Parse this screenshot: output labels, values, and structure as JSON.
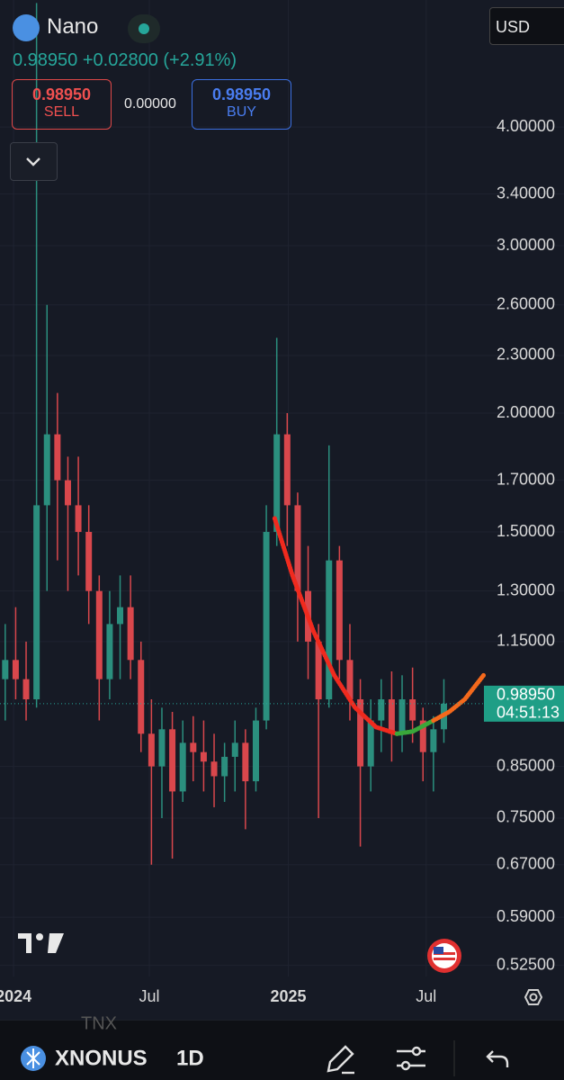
{
  "header": {
    "symbol_name": "Nano",
    "price_line": "0.98950 +0.02800 (+2.91%)",
    "currency": "USD"
  },
  "trade": {
    "sell_price": "0.98950",
    "sell_label": "SELL",
    "spread": "0.00000",
    "buy_price": "0.98950",
    "buy_label": "BUY"
  },
  "chart_data": {
    "type": "candlestick",
    "open": [
      1.05,
      1.1,
      1.05,
      1.0,
      1.6,
      1.9,
      1.7,
      1.6,
      1.5,
      1.3,
      1.05,
      1.2,
      1.25,
      1.1,
      0.92,
      0.85,
      0.93,
      0.8,
      0.9,
      0.88,
      0.86,
      0.83,
      0.87,
      0.9,
      0.82,
      0.95,
      1.5,
      1.9,
      1.6,
      1.3,
      1.15,
      1.0,
      1.4,
      1.1,
      1.0,
      0.85,
      0.95,
      1.0,
      0.92,
      1.0,
      0.95,
      0.88,
      0.93
    ],
    "high": [
      1.2,
      1.25,
      1.15,
      5.4,
      2.6,
      2.1,
      1.8,
      1.8,
      1.6,
      1.35,
      1.3,
      1.35,
      1.35,
      1.15,
      1.0,
      0.98,
      0.97,
      0.95,
      0.96,
      0.95,
      0.92,
      0.9,
      0.95,
      0.93,
      0.98,
      1.6,
      2.4,
      2.0,
      1.65,
      1.45,
      1.2,
      1.85,
      1.45,
      1.2,
      1.05,
      1.0,
      1.05,
      1.07,
      1.06,
      1.08,
      0.98,
      0.96,
      1.05
    ],
    "low": [
      0.95,
      1.0,
      0.95,
      0.98,
      1.3,
      1.4,
      1.3,
      1.35,
      1.2,
      0.95,
      1.0,
      1.05,
      1.05,
      0.88,
      0.67,
      0.75,
      0.68,
      0.78,
      0.82,
      0.8,
      0.77,
      0.78,
      0.8,
      0.73,
      0.8,
      0.93,
      1.45,
      1.45,
      1.15,
      1.05,
      0.75,
      0.98,
      1.05,
      0.95,
      0.7,
      0.8,
      0.88,
      0.86,
      0.88,
      0.9,
      0.82,
      0.8,
      0.9
    ],
    "close": [
      1.1,
      1.05,
      1.0,
      1.6,
      1.9,
      1.7,
      1.6,
      1.5,
      1.3,
      1.05,
      1.2,
      1.25,
      1.1,
      0.92,
      0.85,
      0.93,
      0.8,
      0.9,
      0.88,
      0.86,
      0.83,
      0.87,
      0.9,
      0.82,
      0.95,
      1.5,
      1.9,
      1.6,
      1.3,
      1.15,
      1.0,
      1.4,
      1.1,
      1.0,
      0.85,
      0.95,
      1.0,
      0.92,
      1.0,
      0.95,
      0.88,
      0.93,
      0.9895
    ],
    "up_color": "#2b8f7e",
    "down_color": "#d9474c",
    "series": [
      {
        "color": "#f02a1e",
        "x": [
          26.3,
          28,
          30,
          32,
          34,
          36,
          38
        ],
        "values": [
          1.55,
          1.35,
          1.18,
          1.06,
          0.98,
          0.935,
          0.92
        ]
      },
      {
        "color": "#3aa83a",
        "x": [
          38,
          39.5,
          41.5
        ],
        "values": [
          0.92,
          0.925,
          0.95
        ]
      },
      {
        "color": "#f4691c",
        "x": [
          41.5,
          43,
          44.5,
          46.3
        ],
        "values": [
          0.95,
          0.97,
          1.0,
          1.06
        ]
      }
    ],
    "log_scale": true,
    "grid": true,
    "xlim": [
      0,
      54
    ],
    "ylim": [
      0.5,
      5.5
    ],
    "xticks": [
      {
        "value": 1.3,
        "label": "2024"
      },
      {
        "value": 14.3,
        "label": "Jul"
      },
      {
        "value": 27.6,
        "label": "2025"
      },
      {
        "value": 40.8,
        "label": "Jul"
      }
    ],
    "yticks": [
      {
        "value": 4,
        "label": "4.00000"
      },
      {
        "value": 3.4,
        "label": "3.40000"
      },
      {
        "value": 3,
        "label": "3.00000"
      },
      {
        "value": 2.6,
        "label": "2.60000"
      },
      {
        "value": 2.3,
        "label": "2.30000"
      },
      {
        "value": 2,
        "label": "2.00000"
      },
      {
        "value": 1.7,
        "label": "1.70000"
      },
      {
        "value": 1.5,
        "label": "1.50000"
      },
      {
        "value": 1.3,
        "label": "1.30000"
      },
      {
        "value": 1.15,
        "label": "1.15000"
      },
      {
        "value": 0.85,
        "label": "0.85000"
      },
      {
        "value": 0.75,
        "label": "0.75000"
      },
      {
        "value": 0.67,
        "label": "0.67000"
      },
      {
        "value": 0.59,
        "label": "0.59000"
      },
      {
        "value": 0.525,
        "label": "0.52500"
      }
    ],
    "last_price": {
      "value": 0.9895,
      "label": "0.98950"
    },
    "countdown": "04:51:13"
  },
  "toolbar": {
    "symbol": "XNONUS",
    "interval": "1D",
    "compare": "TNX"
  }
}
